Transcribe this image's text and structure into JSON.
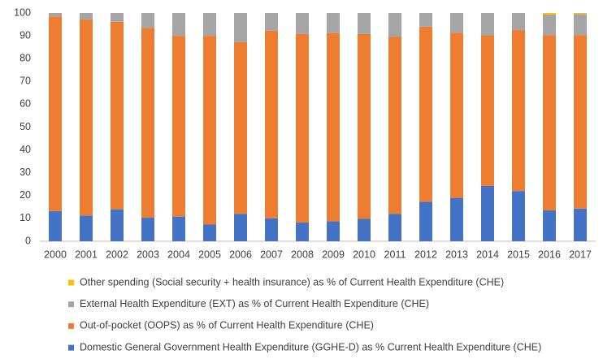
{
  "chart_data": {
    "type": "stacked_bar",
    "categories": [
      "2000",
      "2001",
      "2002",
      "2003",
      "2004",
      "2005",
      "2006",
      "2007",
      "2008",
      "2009",
      "2010",
      "2011",
      "2012",
      "2013",
      "2014",
      "2015",
      "2016",
      "2017"
    ],
    "series": [
      {
        "name": "Domestic General Government Health Expenditure (GGHE-D) as % Current Health Expenditure (CHE)",
        "color": "#4472c4",
        "values": [
          13.2,
          11.3,
          14,
          10.3,
          10.8,
          7.3,
          12,
          10,
          8.2,
          8.7,
          9.8,
          12,
          17.3,
          19,
          24.2,
          22,
          13.5,
          14.3
        ]
      },
      {
        "name": "Out-of-pocket (OOPS) as % of Current Health Expenditure (CHE)",
        "color": "#ed7d31",
        "values": [
          85.3,
          85.9,
          82.2,
          83.2,
          79.2,
          82.7,
          75.2,
          82.2,
          82.6,
          82.5,
          81,
          77.5,
          76.7,
          72.3,
          66,
          70.5,
          76.8,
          76
        ]
      },
      {
        "name": "External Health Expenditure (EXT) as % of Current Health Expenditure (CHE)",
        "color": "#a5a5a5",
        "values": [
          1.5,
          2.8,
          3.8,
          6.5,
          10,
          10,
          12.8,
          7.8,
          9.2,
          8.8,
          9.2,
          10.5,
          6,
          8.7,
          9.8,
          7.5,
          9,
          9.2
        ]
      },
      {
        "name": "Other spending (Social security + health insurance) as % of Current Health Expenditure (CHE)",
        "color": "#ffc000",
        "values": [
          0,
          0,
          0,
          0,
          0,
          0,
          0,
          0,
          0,
          0,
          0,
          0,
          0,
          0,
          0,
          0,
          0.7,
          0.5
        ]
      }
    ],
    "ylim": [
      0,
      100
    ],
    "yticks": [
      0,
      10,
      20,
      30,
      40,
      50,
      60,
      70,
      80,
      90,
      100
    ],
    "grid": false
  }
}
